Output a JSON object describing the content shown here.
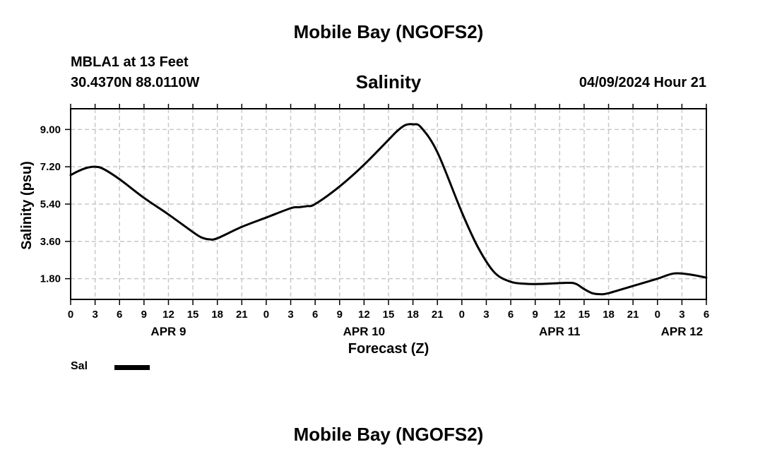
{
  "header": {
    "title": "Mobile Bay (NGOFS2)",
    "station": "MBLA1 at 13 Feet",
    "coordinates": "30.4370N  88.0110W",
    "variable": "Salinity",
    "datetime": "04/09/2024 Hour 21"
  },
  "footer": {
    "title": "Mobile Bay (NGOFS2)"
  },
  "legend": {
    "label": "Sal",
    "color": "#000000"
  },
  "chart_data": {
    "type": "line",
    "xlabel": "Forecast (Z)",
    "ylabel": "Salinity (psu)",
    "ylim": [
      0.8,
      10.0
    ],
    "xlim": [
      0,
      78
    ],
    "yticks": [
      "1.80",
      "3.60",
      "5.40",
      "7.20",
      "9.00"
    ],
    "ytick_values": [
      1.8,
      3.6,
      5.4,
      7.2,
      9.0
    ],
    "xtick_labels": [
      "0",
      "3",
      "6",
      "9",
      "12",
      "15",
      "18",
      "21",
      "0",
      "3",
      "6",
      "9",
      "12",
      "15",
      "18",
      "21",
      "0",
      "3",
      "6",
      "9",
      "12",
      "15",
      "18",
      "21",
      "0",
      "3",
      "6"
    ],
    "date_labels": [
      {
        "label": "APR 9",
        "at_hour": 12
      },
      {
        "label": "APR 10",
        "at_hour": 36
      },
      {
        "label": "APR 11",
        "at_hour": 60
      },
      {
        "label": "APR 12",
        "at_hour": 75
      }
    ],
    "grid": true,
    "series": [
      {
        "name": "Sal",
        "color": "#000000",
        "x": [
          0,
          1,
          2,
          3,
          4,
          6,
          9,
          12,
          15,
          16,
          17,
          18,
          21,
          24,
          27,
          28,
          29,
          30,
          33,
          36,
          39,
          40,
          41,
          42,
          43,
          45,
          48,
          50,
          52,
          54,
          56,
          58,
          61,
          62,
          63,
          64,
          65,
          66,
          69,
          72,
          74,
          76,
          78
        ],
        "y": [
          6.8,
          7.0,
          7.15,
          7.2,
          7.1,
          6.6,
          5.7,
          4.9,
          4.05,
          3.8,
          3.7,
          3.75,
          4.3,
          4.75,
          5.2,
          5.25,
          5.3,
          5.4,
          6.25,
          7.3,
          8.5,
          8.9,
          9.2,
          9.25,
          9.1,
          7.9,
          5.0,
          3.3,
          2.1,
          1.65,
          1.55,
          1.55,
          1.6,
          1.55,
          1.3,
          1.1,
          1.05,
          1.1,
          1.45,
          1.8,
          2.05,
          2.0,
          1.85
        ]
      }
    ]
  }
}
